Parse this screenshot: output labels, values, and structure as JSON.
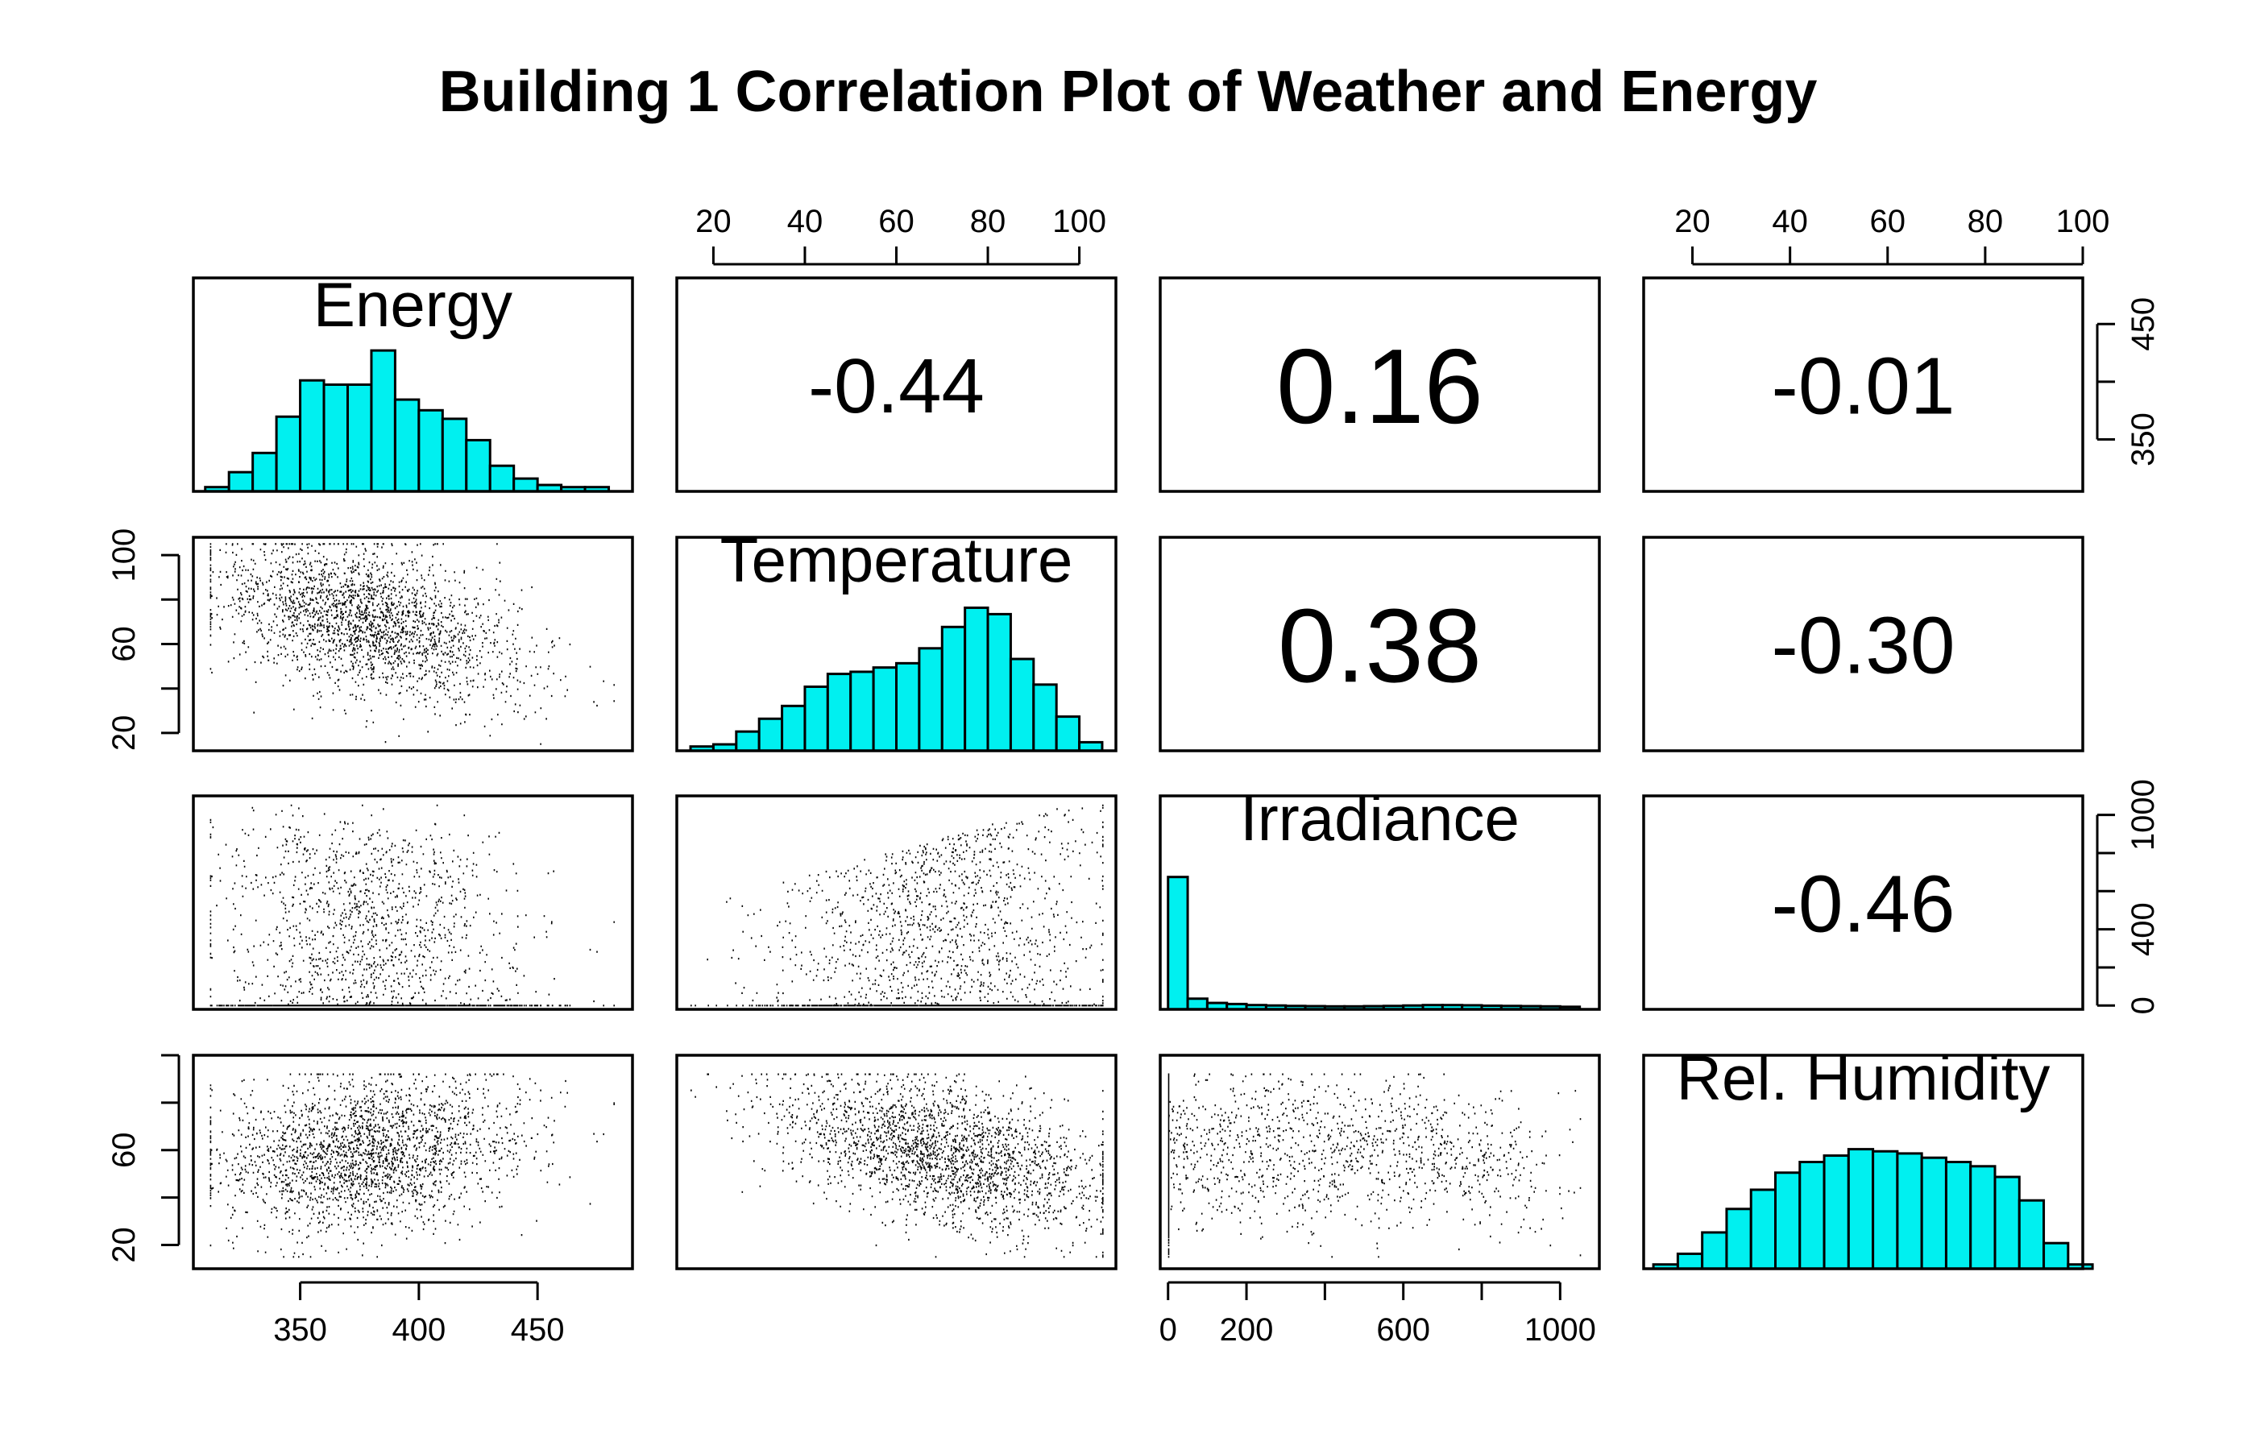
{
  "title": "Building 1 Correlation Plot of Weather and Energy",
  "colors": {
    "hist_fill": "#00f0f0",
    "ink": "#000000",
    "background": "#ffffff"
  },
  "chart_data": {
    "type": "scatter",
    "plot_kind": "pairs",
    "title": "Building 1 Correlation Plot of Weather and Energy",
    "variables": [
      "Energy",
      "Temperature",
      "Irradiance",
      "Rel. Humidity"
    ],
    "ranges": {
      "Energy": [
        305,
        490
      ],
      "Temperature": [
        12,
        108
      ],
      "Irradiance": [
        -20,
        1100
      ],
      "Rel. Humidity": [
        10,
        100
      ]
    },
    "ticks": {
      "Energy": [
        350,
        400,
        450
      ],
      "Temperature": [
        20,
        40,
        60,
        80,
        100
      ],
      "Irradiance": [
        0,
        200,
        400,
        600,
        800,
        1000
      ],
      "Rel. Humidity": [
        20,
        40,
        60,
        80,
        100
      ]
    },
    "tick_labels": {
      "Energy": [
        "350",
        "400",
        "450"
      ],
      "Temperature": [
        "20",
        "",
        "60",
        "",
        "100"
      ],
      "Irradiance": [
        "0",
        "",
        "400",
        "",
        "1000"
      ],
      "Rel. Humidity": [
        "20",
        "",
        "60",
        "",
        ""
      ]
    },
    "top_axis_labels": {
      "Temperature": [
        "20",
        "40",
        "60",
        "80",
        "100"
      ],
      "Rel. Humidity": [
        "20",
        "40",
        "60",
        "80",
        "100"
      ]
    },
    "bottom_axis_labels": {
      "Energy": [
        "350",
        "400",
        "450"
      ],
      "Irradiance": [
        "0",
        "200",
        "",
        "600",
        "",
        "1000"
      ]
    },
    "right_axis_labels": {
      "Energy": [
        "350",
        "",
        "450"
      ],
      "Irradiance": [
        "0",
        "",
        "400",
        "",
        "",
        "1000"
      ]
    },
    "correlations": [
      {
        "row": "Energy",
        "col": "Temperature",
        "label": "-0.44"
      },
      {
        "row": "Energy",
        "col": "Irradiance",
        "label": "0.16"
      },
      {
        "row": "Energy",
        "col": "Rel. Humidity",
        "label": "-0.01"
      },
      {
        "row": "Temperature",
        "col": "Irradiance",
        "label": "0.38"
      },
      {
        "row": "Temperature",
        "col": "Rel. Humidity",
        "label": "-0.30"
      },
      {
        "row": "Irradiance",
        "col": "Rel. Humidity",
        "label": "-0.46"
      }
    ],
    "histograms": {
      "Energy": {
        "breaks": [
          310,
          320,
          330,
          340,
          350,
          360,
          370,
          380,
          390,
          400,
          410,
          420,
          430,
          440,
          450,
          460,
          470,
          480
        ],
        "heights": [
          0.02,
          0.09,
          0.18,
          0.35,
          0.52,
          0.5,
          0.5,
          0.66,
          0.43,
          0.38,
          0.34,
          0.24,
          0.12,
          0.06,
          0.03,
          0.02,
          0.02
        ]
      },
      "Temperature": {
        "breaks": [
          15,
          20,
          25,
          30,
          35,
          40,
          45,
          50,
          55,
          60,
          65,
          70,
          75,
          80,
          85,
          90,
          95,
          100,
          105
        ],
        "heights": [
          0.02,
          0.03,
          0.09,
          0.15,
          0.21,
          0.3,
          0.36,
          0.37,
          0.39,
          0.41,
          0.48,
          0.58,
          0.67,
          0.64,
          0.43,
          0.31,
          0.16,
          0.04
        ]
      },
      "Irradiance": {
        "breaks": [
          0,
          50,
          100,
          150,
          200,
          250,
          300,
          350,
          400,
          450,
          500,
          550,
          600,
          650,
          700,
          750,
          800,
          850,
          900,
          950,
          1000,
          1050
        ],
        "heights": [
          0.62,
          0.05,
          0.03,
          0.025,
          0.02,
          0.018,
          0.016,
          0.015,
          0.014,
          0.014,
          0.015,
          0.016,
          0.018,
          0.02,
          0.02,
          0.019,
          0.017,
          0.016,
          0.015,
          0.014,
          0.012
        ]
      },
      "Rel. Humidity": {
        "breaks": [
          12,
          17,
          22,
          27,
          32,
          37,
          42,
          47,
          52,
          57,
          62,
          67,
          72,
          77,
          82,
          87,
          92,
          97,
          102
        ],
        "heights": [
          0.02,
          0.07,
          0.17,
          0.28,
          0.37,
          0.45,
          0.5,
          0.53,
          0.56,
          0.55,
          0.54,
          0.52,
          0.5,
          0.48,
          0.43,
          0.32,
          0.12,
          0.02
        ]
      }
    }
  }
}
